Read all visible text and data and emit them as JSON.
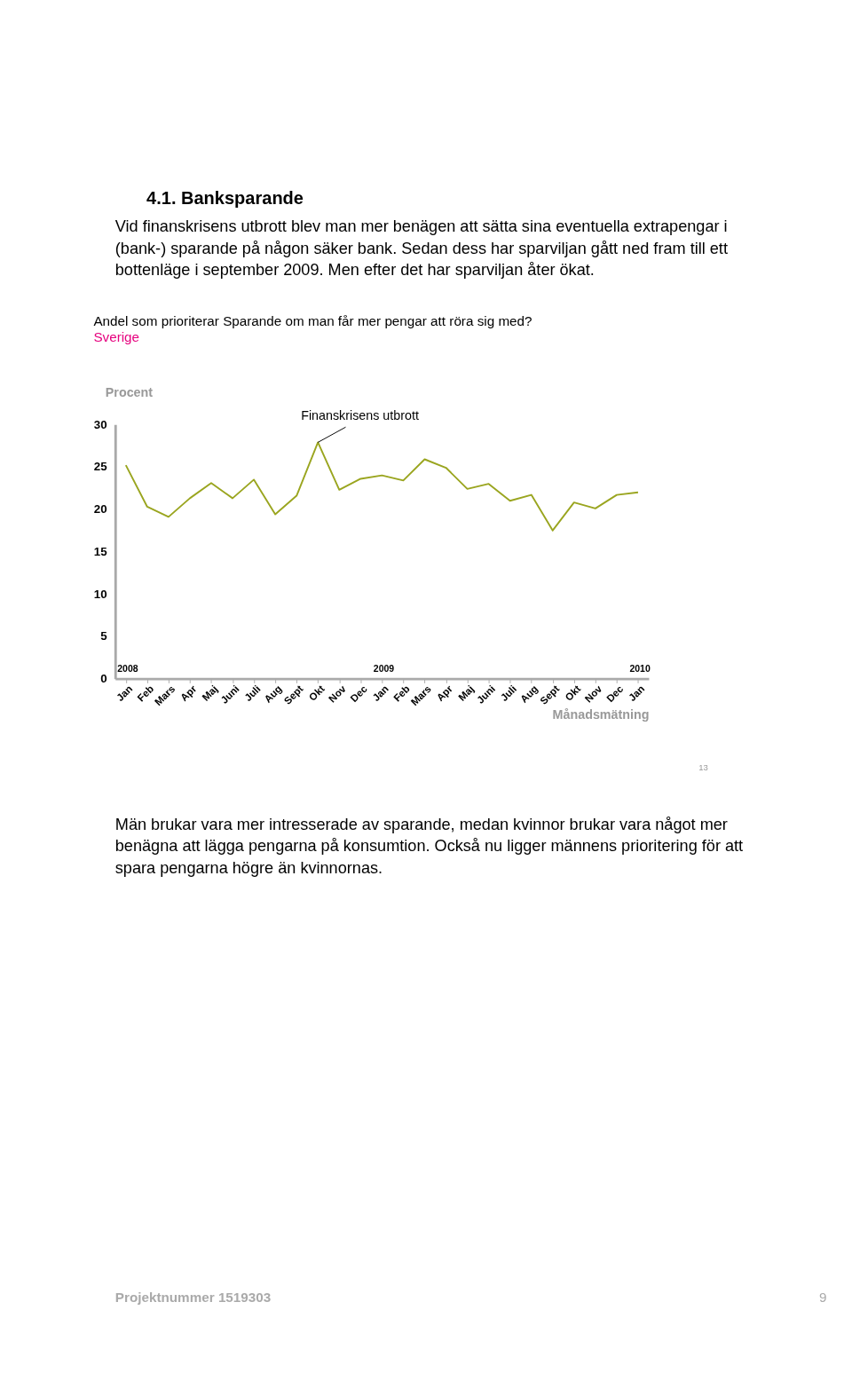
{
  "chart_data": {
    "type": "line",
    "title": "Andel som prioriterar Sparande om man får mer pengar att röra sig med?",
    "subtitle": "Sverige",
    "ylabel": "Procent",
    "xlabel": "Månadsmätning",
    "categories": [
      "Jan",
      "Feb",
      "Mars",
      "Apr",
      "Maj",
      "Juni",
      "Juli",
      "Aug",
      "Sept",
      "Okt",
      "Nov",
      "Dec",
      "Jan",
      "Feb",
      "Mars",
      "Apr",
      "Maj",
      "Juni",
      "Juli",
      "Aug",
      "Sept",
      "Okt",
      "Nov",
      "Dec",
      "Jan"
    ],
    "series": [
      {
        "color": "#9aa51f",
        "values": [
          25.2,
          20.3,
          19.1,
          21.3,
          23.1,
          21.3,
          23.5,
          19.4,
          21.6,
          27.9,
          22.3,
          23.6,
          24.0,
          23.4,
          25.9,
          24.9,
          22.4,
          23.0,
          21.0,
          21.7,
          17.5,
          20.8,
          20.1,
          21.7,
          22.0
        ]
      }
    ],
    "ylim": [
      0,
      30
    ],
    "yticks": [
      0,
      5,
      10,
      15,
      20,
      25,
      30
    ],
    "grid": false,
    "legend": false,
    "marker": "none",
    "line_style": "solid",
    "annotations": [
      "4.1. Banksparande",
      "Vid finanskrisens utbrott blev man mer benägen att sätta sina eventuella extrapengar i (bank-) sparande på någon säker bank. Sedan dess har sparviljan gått ned fram till ett bottenläge i september 2009. Men efter det har sparviljan åter ökat.",
      {
        "text": "Finanskrisens utbrott",
        "x": "Okt",
        "y": 27.9
      },
      "2008",
      "2009",
      "2010",
      "13",
      "Män brukar vara mer intresserade av sparande, medan kvinnor brukar vara något mer benägna att lägga pengarna på konsumtion. Också nu ligger männens prioritering för att spara pengarna högre än kvinnornas.",
      "Projektnummer 1519303",
      "9"
    ]
  }
}
